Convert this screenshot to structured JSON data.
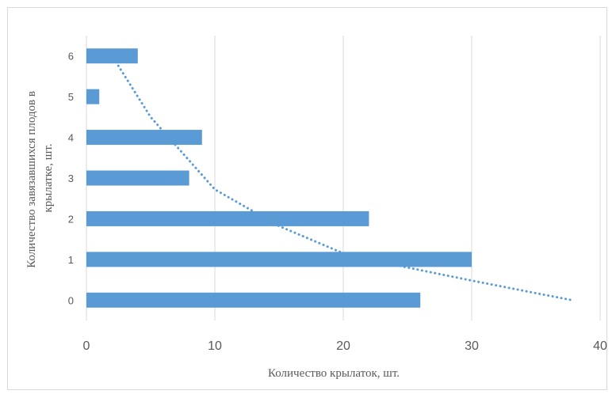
{
  "chart_data": {
    "type": "bar",
    "orientation": "horizontal",
    "categories": [
      "0",
      "1",
      "2",
      "3",
      "4",
      "5",
      "6"
    ],
    "values": [
      26,
      30,
      22,
      8,
      9,
      1,
      4
    ],
    "bar_color": "#5b9bd5",
    "xlabel": "Количество крылаток, шт.",
    "ylabel_lines": [
      "Количество завязавшихся плодов в",
      "крылатке, шт."
    ],
    "xlim": [
      0,
      40
    ],
    "xticks": [
      0,
      10,
      20,
      30,
      40
    ],
    "grid": "vertical",
    "legend": "none",
    "trendline": {
      "type": "exponential",
      "style": "dotted",
      "color": "#5b9bd5",
      "x_start": 2.3,
      "x_end": 37.8,
      "points": [
        [
          2.3,
          5.85
        ],
        [
          5,
          4.5
        ],
        [
          10,
          2.72
        ],
        [
          15,
          1.82
        ],
        [
          20,
          1.15
        ],
        [
          25,
          0.8
        ],
        [
          30,
          0.48
        ],
        [
          35,
          0.17
        ],
        [
          37.8,
          0.0
        ]
      ]
    }
  }
}
